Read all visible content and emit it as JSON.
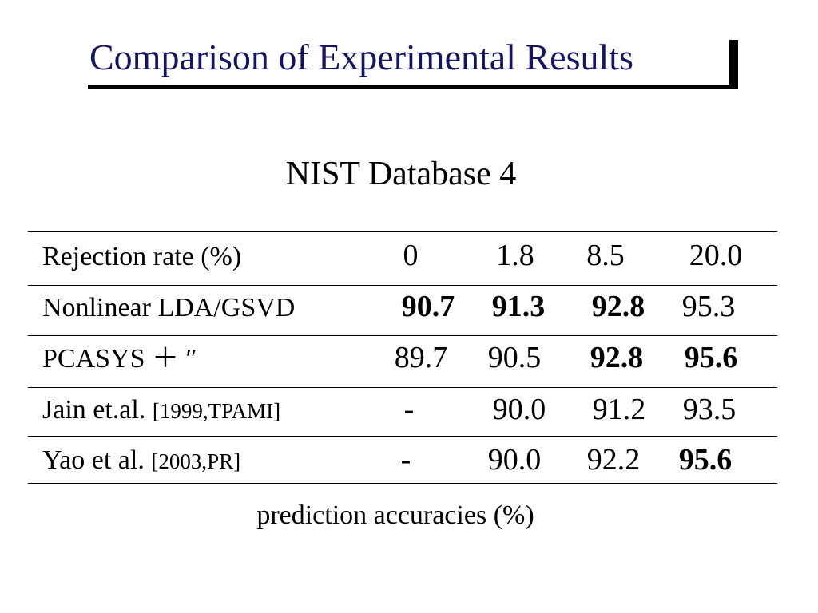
{
  "slide": {
    "title": "Comparison of Experimental Results",
    "subtitle": "NIST Database 4",
    "caption": "prediction accuracies (%)"
  },
  "table": {
    "header": {
      "label": "Rejection rate (%)",
      "values": [
        "0",
        "1.8",
        "8.5",
        "20.0"
      ]
    },
    "rows": [
      {
        "method": "Nonlinear LDA/GSVD",
        "reference": "",
        "values": [
          "90.7",
          "91.3",
          "92.8",
          "95.3"
        ],
        "bold": [
          true,
          true,
          true,
          false
        ]
      },
      {
        "method": "PCASYS ＋ ″",
        "reference": "",
        "values": [
          "89.7",
          "90.5",
          "92.8",
          "95.6"
        ],
        "bold": [
          false,
          false,
          true,
          true
        ]
      },
      {
        "method": "Jain et.al.",
        "reference": "[1999,TPAMI]",
        "values": [
          "-",
          "90.0",
          "91.2",
          "93.5"
        ],
        "bold": [
          false,
          false,
          false,
          false
        ]
      },
      {
        "method": "Yao et al.",
        "reference": "[2003,PR]",
        "values": [
          "-",
          "90.0",
          "92.2",
          "95.6"
        ],
        "bold": [
          false,
          false,
          false,
          true
        ]
      }
    ]
  },
  "colors": {
    "title": "#141464",
    "text": "#000000",
    "background": "#ffffff"
  }
}
